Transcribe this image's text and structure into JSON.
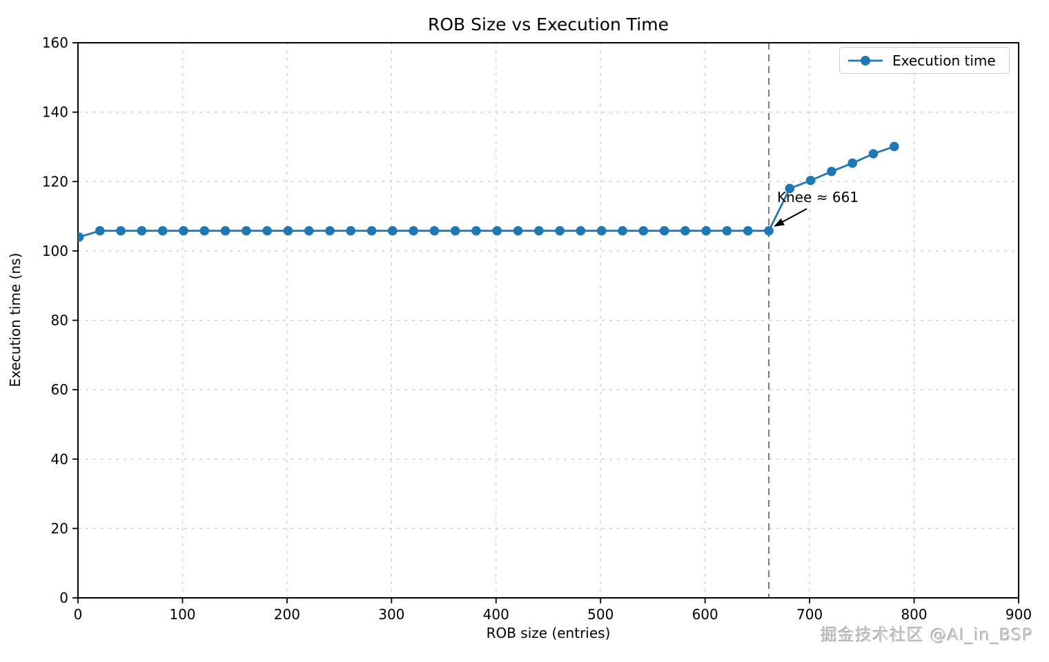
{
  "watermark": {
    "text": "掘金技术社区 @AI_in_BSP"
  },
  "chart_data": {
    "type": "line",
    "title": "ROB Size vs Execution Time",
    "xlabel": "ROB size (entries)",
    "ylabel": "Execution time (ns)",
    "xlim": [
      0,
      900
    ],
    "ylim": [
      0,
      160
    ],
    "xticks": [
      0,
      100,
      200,
      300,
      400,
      500,
      600,
      700,
      800,
      900
    ],
    "yticks": [
      0,
      20,
      40,
      60,
      80,
      100,
      120,
      140,
      160
    ],
    "grid": true,
    "grid_style": "dashed",
    "legend": {
      "position": "upper right",
      "entries": [
        "Execution time"
      ]
    },
    "series": [
      {
        "name": "Execution time",
        "color": "#1f77b4",
        "marker": "circle",
        "x": [
          1,
          21,
          41,
          61,
          81,
          101,
          121,
          141,
          161,
          181,
          201,
          221,
          241,
          261,
          281,
          301,
          321,
          341,
          361,
          381,
          401,
          421,
          441,
          461,
          481,
          501,
          521,
          541,
          561,
          581,
          601,
          621,
          641,
          661,
          681,
          701,
          721,
          741,
          761,
          781
        ],
        "y": [
          104.0,
          105.8,
          105.8,
          105.8,
          105.8,
          105.8,
          105.8,
          105.8,
          105.8,
          105.8,
          105.8,
          105.8,
          105.8,
          105.8,
          105.8,
          105.8,
          105.8,
          105.8,
          105.8,
          105.8,
          105.8,
          105.8,
          105.8,
          105.8,
          105.8,
          105.8,
          105.8,
          105.8,
          105.8,
          105.8,
          105.8,
          105.8,
          105.8,
          105.8,
          118.0,
          120.3,
          122.9,
          125.3,
          128.0,
          130.1
        ]
      }
    ],
    "knee": {
      "x": 661,
      "y": 105.8,
      "label": "Knee ≈ 661",
      "line_color": "#7f7f7f",
      "line_style": "dashed"
    },
    "colors": {
      "grid": "#c9c9c9",
      "spine": "#000000",
      "tick_text": "#000000",
      "series": "#1f77b4",
      "knee_line": "#7f7f7f",
      "annotation_arrow": "#000000",
      "legend_border": "#cccccc",
      "watermark": "#cfcfcf"
    }
  }
}
